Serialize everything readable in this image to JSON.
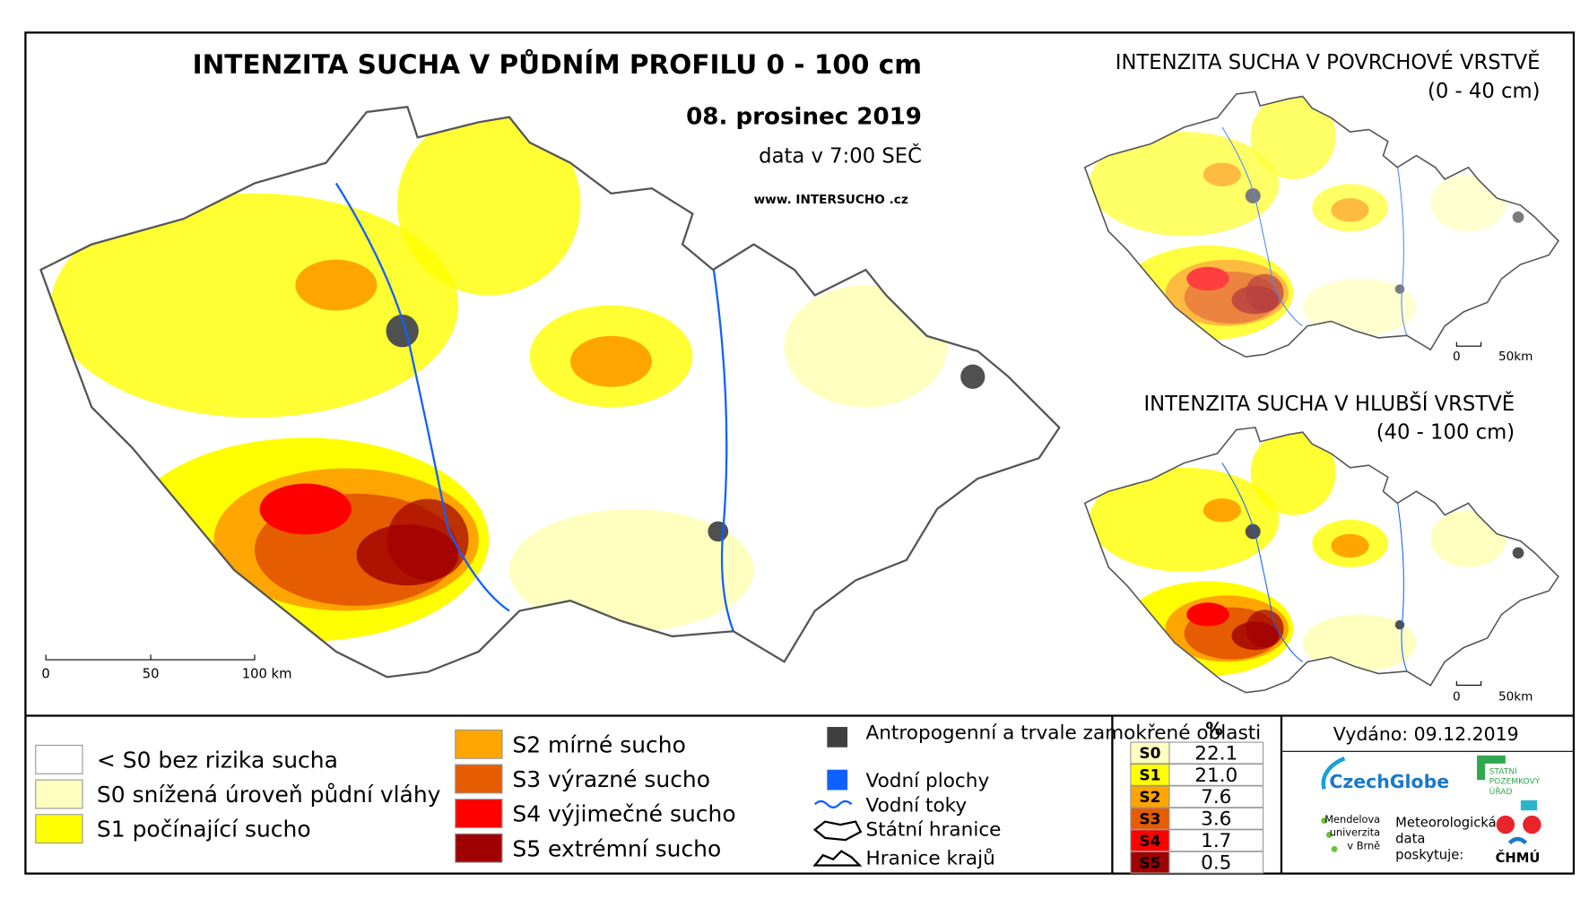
{
  "main": {
    "title": "INTENZITA SUCHA V PŮDNÍM PROFILU 0 - 100 cm",
    "date": "08. prosinec 2019",
    "time": "data v 7:00 SEČ",
    "web_prefix": "www.",
    "web_name": "INTERSUCHO",
    "web_suffix": ".cz",
    "scale": [
      "0",
      "50",
      "100 km"
    ]
  },
  "inset_surface": {
    "title": "INTENZITA SUCHA V POVRCHOVÉ VRSTVĚ",
    "subtitle": "(0 - 40 cm)",
    "scale": [
      "0",
      "50km"
    ]
  },
  "inset_deep": {
    "title": "INTENZITA SUCHA V HLUBŠÍ VRSTVĚ",
    "subtitle": "(40 - 100 cm)",
    "scale": [
      "0",
      "50km"
    ]
  },
  "legend": {
    "classes": [
      {
        "label": "< S0 bez rizika sucha",
        "color": "#ffffff"
      },
      {
        "label": "S0 snížená úroveň půdní vláhy",
        "color": "#ffffc0"
      },
      {
        "label": "S1 počínající sucho",
        "color": "#ffff00"
      },
      {
        "label": "S2 mírné sucho",
        "color": "#ffa500"
      },
      {
        "label": "S3 výrazné sucho",
        "color": "#e65c00"
      },
      {
        "label": "S4 výjimečné sucho",
        "color": "#ff0000"
      },
      {
        "label": "S5 extrémní sucho",
        "color": "#a00000"
      }
    ],
    "symbols": [
      "Antropogenní a trvale zamokřené oblasti",
      "Vodní plochy",
      "Vodní toky",
      "Státní hranice",
      "Hranice krajů"
    ]
  },
  "table": {
    "header": "%",
    "rows": [
      [
        "S0",
        "22.1"
      ],
      [
        "S1",
        "21.0"
      ],
      [
        "S2",
        "7.6"
      ],
      [
        "S3",
        "3.6"
      ],
      [
        "S4",
        "1.7"
      ],
      [
        "S5",
        "0.5"
      ]
    ]
  },
  "footer": {
    "issued": "Vydáno: 09.12.2019",
    "czechglobe": "CzechGlobe",
    "spu": [
      "STÁTNÍ",
      "POZEMKOVÝ",
      "ÚŘAD"
    ],
    "mendelu": [
      "Mendelova",
      "univerzita",
      "v Brně"
    ],
    "chmu_note": [
      "Meteorologická",
      "data",
      "poskytuje:"
    ],
    "chmu": "ČHMÚ"
  }
}
